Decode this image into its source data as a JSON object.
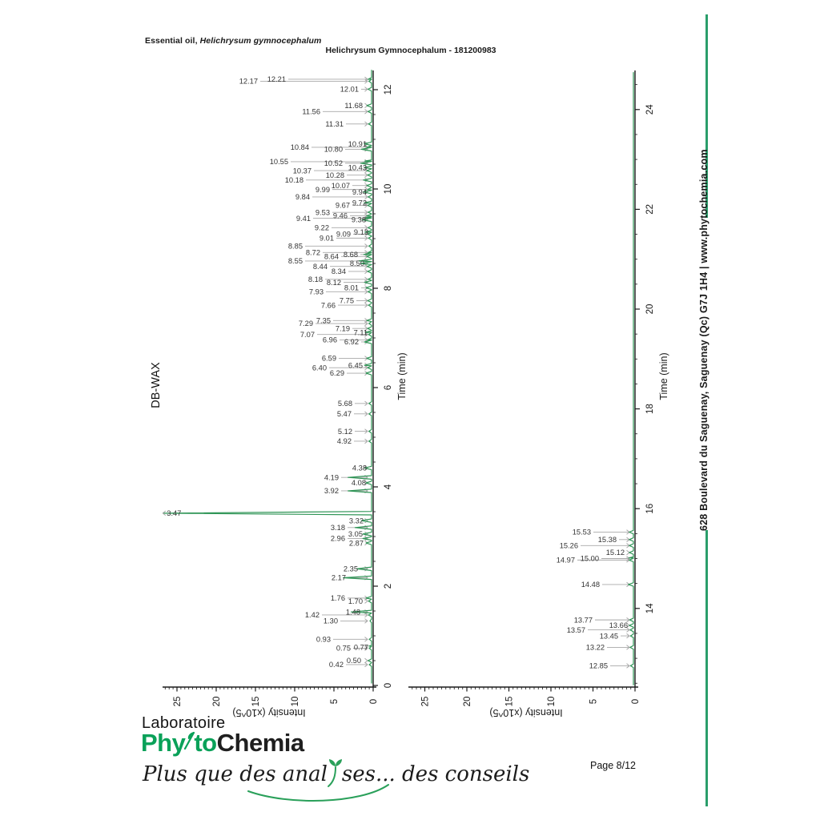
{
  "header": {
    "sample_prefix": "Essential oil, ",
    "sample_species": "Helichrysum gymnocephalum",
    "figure_title": "Helichrysum Gymnocephalum - 181200983",
    "column_label": "DB-WAX"
  },
  "sidebar": {
    "address": "628 Boulevard du Saguenay, Saguenay (Qc)  G7J 1H4  |  www.phytochemia.com"
  },
  "footer": {
    "lab_word": "Laboratoire",
    "logo_phy": "Phy",
    "logo_to": "to",
    "logo_chemia": "Chemia",
    "tagline_part1": "Plus que des anal",
    "tagline_part2": "ses... des conseils",
    "page_label": "Page 8/12"
  },
  "colors": {
    "trace_green": "#2f9556",
    "logo_green": "#0aa159",
    "rule_green": "#2a9e6b",
    "arrow_gray": "#a8a8a8",
    "axis_black": "#1a1a1a",
    "label_gray": "#333333"
  },
  "chart_data": {
    "type": "line",
    "title": "Helichrysum Gymnocephalum - 181200983",
    "legend": "none",
    "grid": false,
    "orientation": "rotated-90-ccw: time axis vertical (0 bottom), intensity grows leftward",
    "panels": [
      {
        "name": "chromatogram-0-12.4min",
        "xlabel": "Time (min)",
        "ylabel": "Intensity (x10^5)",
        "time_range": [
          0,
          12.4
        ],
        "intensity_range": [
          0,
          27
        ],
        "time_major_ticks": [
          0,
          2,
          4,
          6,
          8,
          10,
          12
        ],
        "time_minor_step": 0.5,
        "intensity_ticks": [
          0,
          5,
          10,
          15,
          20,
          25
        ],
        "peaks": [
          [
            0.42,
            0.3,
            37,
            "0.42"
          ],
          [
            0.5,
            0.45,
            15,
            "0.50"
          ],
          [
            0.75,
            0.3,
            28,
            "0.75"
          ],
          [
            0.77,
            0.35,
            6,
            "0.77"
          ],
          [
            0.93,
            0.3,
            53,
            "0.93"
          ],
          [
            1.3,
            0.2,
            44,
            "1.30"
          ],
          [
            1.42,
            0.4,
            67,
            "1.42"
          ],
          [
            1.48,
            2.6,
            16,
            "1.48"
          ],
          [
            1.7,
            0.4,
            13,
            "1.70"
          ],
          [
            1.76,
            0.7,
            35,
            "1.76"
          ],
          [
            2.17,
            3.6,
            34,
            "2.17"
          ],
          [
            2.35,
            1.9,
            19,
            "2.35"
          ],
          [
            2.87,
            0.7,
            12,
            "2.87"
          ],
          [
            2.96,
            1.1,
            35,
            "2.96"
          ],
          [
            3.05,
            1.1,
            13,
            "3.05"
          ],
          [
            3.18,
            2.1,
            35,
            "3.18"
          ],
          [
            3.32,
            1.3,
            12,
            "3.32"
          ],
          [
            3.47,
            26.5,
            258,
            "3.47",
            "tip"
          ],
          [
            3.92,
            3.0,
            43,
            "3.92"
          ],
          [
            4.08,
            0.7,
            9,
            "4.08"
          ],
          [
            4.19,
            3.0,
            43,
            "4.19"
          ],
          [
            4.38,
            0.9,
            8,
            "4.38"
          ],
          [
            4.92,
            0.35,
            27,
            "4.92"
          ],
          [
            5.12,
            0.35,
            26,
            "5.12"
          ],
          [
            5.47,
            0.35,
            27,
            "5.47"
          ],
          [
            5.68,
            0.35,
            26,
            "5.68"
          ],
          [
            6.29,
            0.7,
            36,
            "6.29"
          ],
          [
            6.4,
            0.5,
            58,
            "6.40"
          ],
          [
            6.45,
            0.9,
            13,
            "6.45"
          ],
          [
            6.59,
            0.6,
            46,
            "6.59"
          ],
          [
            6.92,
            0.9,
            18,
            "6.92"
          ],
          [
            6.96,
            0.5,
            45,
            "6.96"
          ],
          [
            7.07,
            0.4,
            73,
            "7.07"
          ],
          [
            7.11,
            0.8,
            7,
            "7.11"
          ],
          [
            7.19,
            0.5,
            29,
            "7.19"
          ],
          [
            7.29,
            0.35,
            75,
            "7.29"
          ],
          [
            7.35,
            0.6,
            53,
            "7.35"
          ],
          [
            7.66,
            0.4,
            47,
            "7.66"
          ],
          [
            7.75,
            0.5,
            24,
            "7.75"
          ],
          [
            7.93,
            0.45,
            62,
            "7.93"
          ],
          [
            8.01,
            0.7,
            18,
            "8.01"
          ],
          [
            8.12,
            0.9,
            40,
            "8.12"
          ],
          [
            8.18,
            0.45,
            63,
            "8.18"
          ],
          [
            8.34,
            0.5,
            34,
            "8.34"
          ],
          [
            8.44,
            0.55,
            57,
            "8.44"
          ],
          [
            8.5,
            1.4,
            11,
            "8.50"
          ],
          [
            8.55,
            1.6,
            88,
            "8.55"
          ],
          [
            8.64,
            0.6,
            43,
            "8.64"
          ],
          [
            8.68,
            1.0,
            19,
            "8.68"
          ],
          [
            8.72,
            0.45,
            66,
            "8.72"
          ],
          [
            8.85,
            0.35,
            88,
            "8.85"
          ],
          [
            9.01,
            0.4,
            49,
            "9.01"
          ],
          [
            9.09,
            0.5,
            28,
            "9.09"
          ],
          [
            9.13,
            0.85,
            6,
            "9.13"
          ],
          [
            9.22,
            0.45,
            55,
            "9.22"
          ],
          [
            9.38,
            1.2,
            9,
            "9.38"
          ],
          [
            9.41,
            0.8,
            78,
            "9.41"
          ],
          [
            9.46,
            0.6,
            32,
            "9.46"
          ],
          [
            9.53,
            0.45,
            54,
            "9.53"
          ],
          [
            9.67,
            0.5,
            29,
            "9.67"
          ],
          [
            9.72,
            0.95,
            8,
            "9.72"
          ],
          [
            9.84,
            0.45,
            79,
            "9.84"
          ],
          [
            9.94,
            1.05,
            8,
            "9.94"
          ],
          [
            9.99,
            0.5,
            54,
            "9.99"
          ],
          [
            10.07,
            0.6,
            29,
            "10.07"
          ],
          [
            10.18,
            1.05,
            87,
            "10.18"
          ],
          [
            10.28,
            0.5,
            36,
            "10.28"
          ],
          [
            10.37,
            0.6,
            77,
            "10.37"
          ],
          [
            10.43,
            0.95,
            8,
            "10.43"
          ],
          [
            10.52,
            1.4,
            38,
            "10.52"
          ],
          [
            10.55,
            0.85,
            106,
            "10.55"
          ],
          [
            10.8,
            1.3,
            38,
            "10.80"
          ],
          [
            10.84,
            0.6,
            80,
            "10.84"
          ],
          [
            10.91,
            0.95,
            8,
            "10.91"
          ],
          [
            11.31,
            0.4,
            37,
            "11.31"
          ],
          [
            11.56,
            0.45,
            66,
            "11.56"
          ],
          [
            11.68,
            0.6,
            13,
            "11.68"
          ],
          [
            12.01,
            0.45,
            18,
            "12.01"
          ],
          [
            12.17,
            0.35,
            144,
            "12.17"
          ],
          [
            12.21,
            0.45,
            109,
            "12.21"
          ]
        ]
      },
      {
        "name": "chromatogram-12.4-25min",
        "xlabel": "Time (min)",
        "ylabel": "Intensity (x10^5)",
        "time_range": [
          12.4,
          24.8
        ],
        "intensity_range": [
          0,
          27
        ],
        "time_major_ticks": [
          14,
          16,
          18,
          20,
          22,
          24
        ],
        "time_minor_step": 0.5,
        "intensity_ticks": [
          0,
          5,
          10,
          15,
          20,
          25
        ],
        "peaks": [
          [
            12.85,
            0.35,
            34,
            "12.85"
          ],
          [
            13.22,
            0.4,
            38,
            "13.22"
          ],
          [
            13.45,
            0.35,
            21,
            "13.45"
          ],
          [
            13.57,
            0.4,
            62,
            "13.57"
          ],
          [
            13.66,
            0.5,
            9,
            "13.66"
          ],
          [
            13.77,
            0.45,
            53,
            "13.77"
          ],
          [
            14.48,
            0.6,
            44,
            "14.48"
          ],
          [
            14.97,
            0.5,
            75,
            "14.97"
          ],
          [
            15.0,
            0.55,
            45,
            "15.00"
          ],
          [
            15.12,
            0.5,
            13,
            "15.12"
          ],
          [
            15.26,
            0.5,
            71,
            "15.26"
          ],
          [
            15.38,
            0.5,
            23,
            "15.38"
          ],
          [
            15.53,
            0.5,
            55,
            "15.53"
          ]
        ]
      }
    ]
  }
}
